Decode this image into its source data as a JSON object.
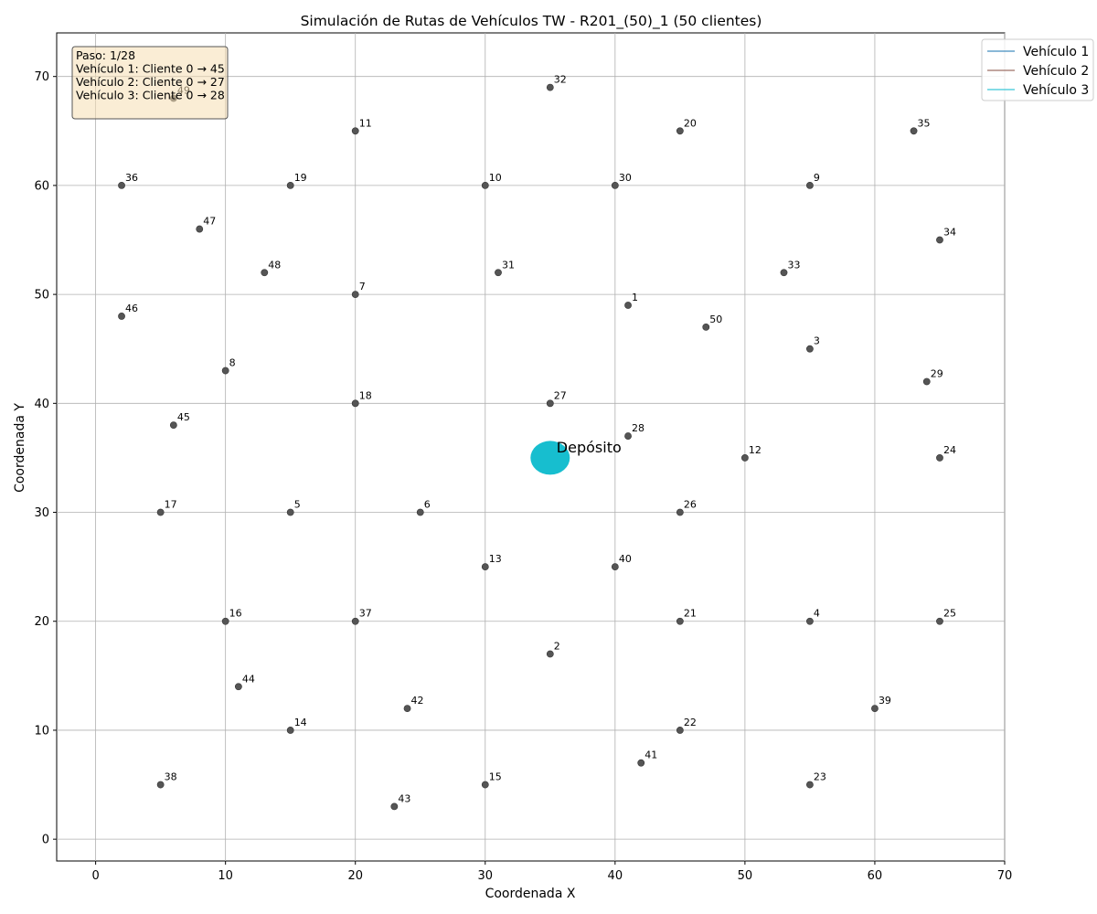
{
  "chart_data": {
    "type": "scatter",
    "title": "Simulación de Rutas de Vehículos TW - R201_(50)_1 (50 clientes)",
    "xlabel": "Coordenada X",
    "ylabel": "Coordenada Y",
    "xlim": [
      -3,
      70
    ],
    "ylim": [
      -2,
      74
    ],
    "xticks": [
      0,
      10,
      20,
      30,
      40,
      50,
      60,
      70
    ],
    "yticks": [
      0,
      10,
      20,
      30,
      40,
      50,
      60,
      70
    ],
    "grid": true,
    "legend_position": "top-right",
    "point_color": "#555555",
    "depot": {
      "label": "Depósito",
      "x": 35,
      "y": 35,
      "color": "#17becf"
    },
    "series": [
      {
        "name": "Vehículo 1",
        "color": "#1f77b4",
        "x": [],
        "y": []
      },
      {
        "name": "Vehículo 2",
        "color": "#8c564b",
        "x": [],
        "y": []
      },
      {
        "name": "Vehículo 3",
        "color": "#17becf",
        "x": [],
        "y": []
      }
    ],
    "customers": [
      {
        "id": "1",
        "x": 41,
        "y": 49
      },
      {
        "id": "2",
        "x": 35,
        "y": 17
      },
      {
        "id": "3",
        "x": 55,
        "y": 45
      },
      {
        "id": "4",
        "x": 55,
        "y": 20
      },
      {
        "id": "5",
        "x": 15,
        "y": 30
      },
      {
        "id": "6",
        "x": 25,
        "y": 30
      },
      {
        "id": "7",
        "x": 20,
        "y": 50
      },
      {
        "id": "8",
        "x": 10,
        "y": 43
      },
      {
        "id": "9",
        "x": 55,
        "y": 60
      },
      {
        "id": "10",
        "x": 30,
        "y": 60
      },
      {
        "id": "11",
        "x": 20,
        "y": 65
      },
      {
        "id": "12",
        "x": 50,
        "y": 35
      },
      {
        "id": "13",
        "x": 30,
        "y": 25
      },
      {
        "id": "14",
        "x": 15,
        "y": 10
      },
      {
        "id": "15",
        "x": 30,
        "y": 5
      },
      {
        "id": "16",
        "x": 10,
        "y": 20
      },
      {
        "id": "17",
        "x": 5,
        "y": 30
      },
      {
        "id": "18",
        "x": 20,
        "y": 40
      },
      {
        "id": "19",
        "x": 15,
        "y": 60
      },
      {
        "id": "20",
        "x": 45,
        "y": 65
      },
      {
        "id": "21",
        "x": 45,
        "y": 20
      },
      {
        "id": "22",
        "x": 45,
        "y": 10
      },
      {
        "id": "23",
        "x": 55,
        "y": 5
      },
      {
        "id": "24",
        "x": 65,
        "y": 35
      },
      {
        "id": "25",
        "x": 65,
        "y": 20
      },
      {
        "id": "26",
        "x": 45,
        "y": 30
      },
      {
        "id": "27",
        "x": 35,
        "y": 40
      },
      {
        "id": "28",
        "x": 41,
        "y": 37
      },
      {
        "id": "29",
        "x": 64,
        "y": 42
      },
      {
        "id": "30",
        "x": 40,
        "y": 60
      },
      {
        "id": "31",
        "x": 31,
        "y": 52
      },
      {
        "id": "32",
        "x": 35,
        "y": 69
      },
      {
        "id": "33",
        "x": 53,
        "y": 52
      },
      {
        "id": "34",
        "x": 65,
        "y": 55
      },
      {
        "id": "35",
        "x": 63,
        "y": 65
      },
      {
        "id": "36",
        "x": 2,
        "y": 60
      },
      {
        "id": "37",
        "x": 20,
        "y": 20
      },
      {
        "id": "38",
        "x": 5,
        "y": 5
      },
      {
        "id": "39",
        "x": 60,
        "y": 12
      },
      {
        "id": "40",
        "x": 40,
        "y": 25
      },
      {
        "id": "41",
        "x": 42,
        "y": 7
      },
      {
        "id": "42",
        "x": 24,
        "y": 12
      },
      {
        "id": "43",
        "x": 23,
        "y": 3
      },
      {
        "id": "44",
        "x": 11,
        "y": 14
      },
      {
        "id": "45",
        "x": 6,
        "y": 38
      },
      {
        "id": "46",
        "x": 2,
        "y": 48
      },
      {
        "id": "47",
        "x": 8,
        "y": 56
      },
      {
        "id": "48",
        "x": 13,
        "y": 52
      },
      {
        "id": "49",
        "x": 6,
        "y": 68
      },
      {
        "id": "50",
        "x": 47,
        "y": 47
      }
    ],
    "info_box": {
      "lines": [
        "Paso: 1/28",
        "Vehículo 1: Cliente 0 → 45",
        "Vehículo 2: Cliente 0 → 27",
        "Vehículo 3: Cliente 0 → 28"
      ],
      "background": "#f5deb3"
    }
  }
}
